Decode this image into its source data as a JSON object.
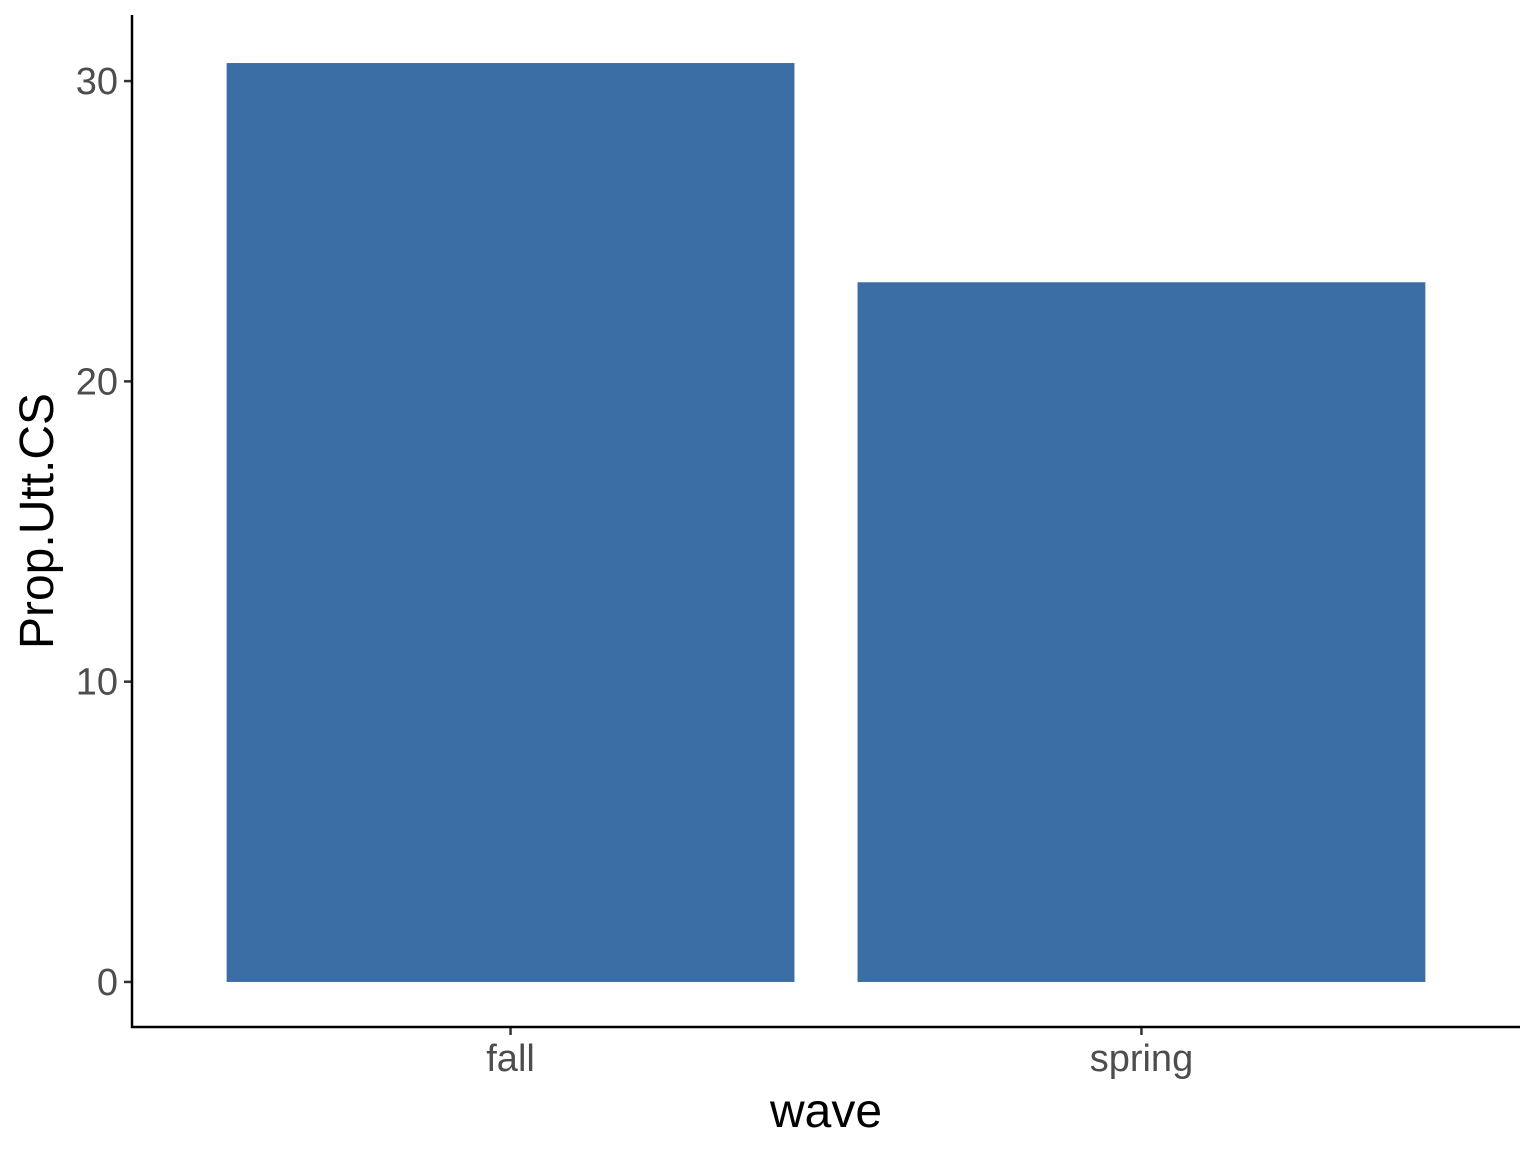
{
  "chart_data": {
    "type": "bar",
    "categories": [
      "fall",
      "spring"
    ],
    "values": [
      30.6,
      23.3
    ],
    "xlabel": "wave",
    "ylabel": "Prop.Utt.CS",
    "ylim": [
      -1.5,
      32.2
    ],
    "yticks": [
      0,
      10,
      20,
      30
    ],
    "ytick_labels": [
      "0",
      "10",
      "20",
      "30"
    ],
    "grid": false,
    "legend": "none",
    "bar_color": "#3a6ea5"
  }
}
